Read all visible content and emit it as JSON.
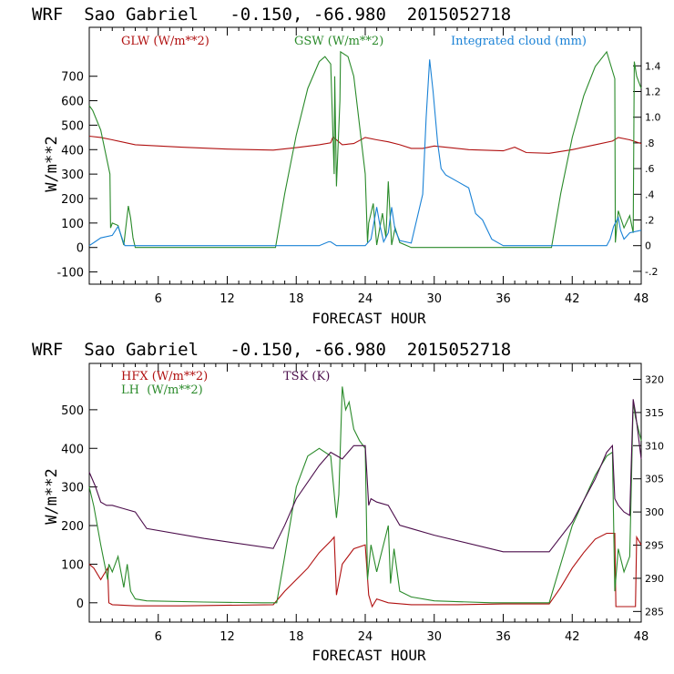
{
  "chart_data": [
    {
      "type": "line",
      "title": "WRF  Sao Gabriel   -0.150, -66.980  2015052718",
      "xlabel": "FORECAST HOUR",
      "ylabel": "W/m**2",
      "xlim": [
        0,
        48
      ],
      "ylim": [
        -150,
        900
      ],
      "y2lim": [
        -0.3,
        1.7
      ],
      "x_ticks": [
        6,
        12,
        18,
        24,
        30,
        36,
        42,
        48
      ],
      "x_tick_labels": [
        "6",
        "12",
        "18",
        "24",
        "30",
        "36",
        "42",
        "48"
      ],
      "y_ticks": [
        -100,
        0,
        100,
        200,
        300,
        400,
        500,
        600,
        700
      ],
      "y_tick_labels": [
        "-100",
        "0",
        "100",
        "200",
        "300",
        "400",
        "500",
        "600",
        "700"
      ],
      "y2_ticks": [
        -0.2,
        0,
        0.2,
        0.4,
        0.6,
        0.8,
        1.0,
        1.2,
        1.4
      ],
      "y2_tick_labels": [
        "-.2",
        "0",
        ".2",
        ".4",
        ".6",
        ".8",
        "1.0",
        "1.2",
        "1.4"
      ],
      "series": [
        {
          "name": "GLW (W/m**2)",
          "axis": "left",
          "color": "#b01010",
          "x": [
            0,
            1,
            2,
            4,
            8,
            12,
            16,
            18,
            20,
            21,
            21.2,
            22,
            23,
            24,
            25,
            26,
            27,
            28,
            29,
            30,
            33,
            36,
            37,
            38,
            40,
            42,
            44,
            45.5,
            46,
            47,
            48
          ],
          "y": [
            455,
            450,
            440,
            420,
            410,
            402,
            398,
            408,
            420,
            428,
            452,
            420,
            425,
            450,
            440,
            432,
            420,
            405,
            405,
            415,
            400,
            395,
            410,
            388,
            385,
            400,
            420,
            435,
            450,
            440,
            425
          ]
        },
        {
          "name": "GSW (W/m**2)",
          "axis": "left",
          "color": "#2a8a2a",
          "x": [
            0,
            0.3,
            1,
            1.8,
            1.85,
            2,
            2.5,
            3,
            3.4,
            3.6,
            3.8,
            4,
            5,
            10,
            15,
            16.2,
            17,
            18,
            19,
            20,
            20.5,
            21,
            21.3,
            21.35,
            21.5,
            21.8,
            21.85,
            22.5,
            23,
            24,
            24.2,
            24.3,
            24.7,
            25,
            25.5,
            25.8,
            26,
            26.3,
            26.6,
            27,
            28,
            30,
            34,
            40,
            40.2,
            41,
            42,
            43,
            44,
            45,
            45.7,
            45.75,
            46,
            46.5,
            47,
            47.3,
            47.4,
            47.6,
            48
          ],
          "y": [
            580,
            560,
            480,
            300,
            80,
            100,
            90,
            10,
            170,
            120,
            40,
            0,
            0,
            0,
            0,
            0,
            220,
            460,
            650,
            760,
            780,
            750,
            300,
            700,
            250,
            600,
            800,
            780,
            700,
            300,
            20,
            100,
            180,
            10,
            140,
            40,
            270,
            10,
            80,
            20,
            0,
            0,
            0,
            0,
            0,
            220,
            450,
            620,
            740,
            800,
            690,
            20,
            150,
            80,
            130,
            60,
            760,
            700,
            650
          ]
        },
        {
          "name": "Integrated cloud (mm)",
          "axis": "right",
          "color": "#1a82d6",
          "x": [
            0,
            0.5,
            1,
            2,
            2.5,
            3,
            3.1,
            5,
            20,
            20.8,
            21,
            21.5,
            22,
            23,
            24,
            24.5,
            25,
            25.3,
            25.6,
            26,
            26.3,
            26.6,
            27,
            28,
            29,
            29.3,
            29.6,
            29.9,
            30.3,
            30.6,
            31,
            32,
            33,
            33.6,
            34.2,
            35,
            35.8,
            36,
            40,
            44,
            45,
            45.3,
            45.6,
            46,
            46.2,
            46.5,
            47,
            48
          ],
          "y": [
            0,
            0.03,
            0.06,
            0.08,
            0.15,
            0.02,
            0,
            0,
            0,
            0.03,
            0.03,
            0,
            0,
            0,
            0,
            0.05,
            0.3,
            0.15,
            0.03,
            0.1,
            0.3,
            0.12,
            0.04,
            0.02,
            0.4,
            1.0,
            1.45,
            1.2,
            0.8,
            0.6,
            0.55,
            0.5,
            0.45,
            0.25,
            0.2,
            0.05,
            0.01,
            0,
            0,
            0,
            0,
            0.05,
            0.15,
            0.22,
            0.12,
            0.05,
            0.1,
            0.12
          ]
        }
      ]
    },
    {
      "type": "line",
      "title": "WRF  Sao Gabriel   -0.150, -66.980  2015052718",
      "xlabel": "FORECAST HOUR",
      "ylabel": "W/m**2",
      "xlim": [
        0,
        48
      ],
      "ylim": [
        -50,
        620
      ],
      "y2lim": [
        283.4,
        322.4
      ],
      "x_ticks": [
        6,
        12,
        18,
        24,
        30,
        36,
        42,
        48
      ],
      "x_tick_labels": [
        "6",
        "12",
        "18",
        "24",
        "30",
        "36",
        "42",
        "48"
      ],
      "y_ticks": [
        0,
        100,
        200,
        300,
        400,
        500
      ],
      "y_tick_labels": [
        "0",
        "100",
        "200",
        "300",
        "400",
        "500"
      ],
      "y2_ticks": [
        285,
        290,
        295,
        300,
        305,
        310,
        315,
        320
      ],
      "y2_tick_labels": [
        "285",
        "290",
        "295",
        "300",
        "305",
        "310",
        "315",
        "320"
      ],
      "series": [
        {
          "name": "HFX (W/m**2)",
          "axis": "left",
          "color": "#b01010",
          "x": [
            0,
            0.4,
            1,
            1.6,
            1.7,
            2,
            4,
            8,
            16,
            17,
            18,
            19,
            20,
            21,
            21.3,
            21.5,
            22,
            23,
            24,
            24.3,
            24.6,
            25,
            26,
            28,
            32,
            36,
            40,
            41,
            42,
            43,
            44,
            45,
            45.7,
            45.8,
            47,
            47.5,
            47.6,
            48
          ],
          "y": [
            100,
            90,
            60,
            90,
            0,
            -5,
            -8,
            -8,
            -5,
            30,
            60,
            90,
            130,
            160,
            170,
            20,
            100,
            140,
            150,
            20,
            -10,
            10,
            0,
            -5,
            -5,
            -3,
            -3,
            40,
            90,
            130,
            165,
            180,
            180,
            -10,
            -10,
            -10,
            170,
            150
          ]
        },
        {
          "name": "LH  (W/m**2)",
          "axis": "left",
          "color": "#2a8a2a",
          "x": [
            0,
            0.4,
            1,
            1.6,
            1.7,
            2,
            2.5,
            3,
            3.3,
            3.6,
            4,
            5,
            10,
            15,
            16.3,
            17,
            18,
            19,
            20,
            21,
            21.5,
            21.7,
            22,
            22.3,
            22.6,
            23,
            23.5,
            24,
            24.2,
            24.5,
            25,
            26,
            26.2,
            26.5,
            27,
            28,
            30,
            35,
            40,
            41,
            42,
            44,
            45,
            45.5,
            45.7,
            46,
            46.5,
            47,
            47.3,
            47.5,
            48
          ],
          "y": [
            300,
            250,
            150,
            60,
            100,
            80,
            120,
            40,
            100,
            30,
            10,
            5,
            2,
            0,
            0,
            120,
            300,
            380,
            400,
            380,
            220,
            280,
            560,
            500,
            520,
            450,
            420,
            400,
            60,
            150,
            80,
            200,
            50,
            140,
            30,
            15,
            5,
            0,
            0,
            100,
            200,
            330,
            380,
            390,
            30,
            140,
            80,
            120,
            520,
            480,
            420
          ]
        },
        {
          "name": "TSK (K)",
          "axis": "right",
          "color": "#4b0d4b",
          "x": [
            0,
            0.5,
            1,
            1.5,
            2,
            3,
            4,
            5,
            10,
            16,
            17,
            18,
            20,
            21,
            22,
            23,
            24,
            24.3,
            24.5,
            25,
            26,
            27,
            28,
            30,
            36,
            40,
            42,
            44,
            45,
            45.5,
            45.7,
            46,
            46.5,
            47,
            47.3,
            47.5,
            48
          ],
          "y": [
            306,
            304,
            301.5,
            301,
            301,
            300.5,
            300,
            297.5,
            296,
            294.5,
            298,
            302,
            307,
            309,
            308,
            310,
            310,
            301,
            302,
            301.5,
            301,
            298,
            297.5,
            296.5,
            294,
            294,
            298.5,
            305,
            309,
            310,
            302,
            301,
            300,
            299.5,
            317,
            315,
            308
          ]
        }
      ]
    }
  ]
}
